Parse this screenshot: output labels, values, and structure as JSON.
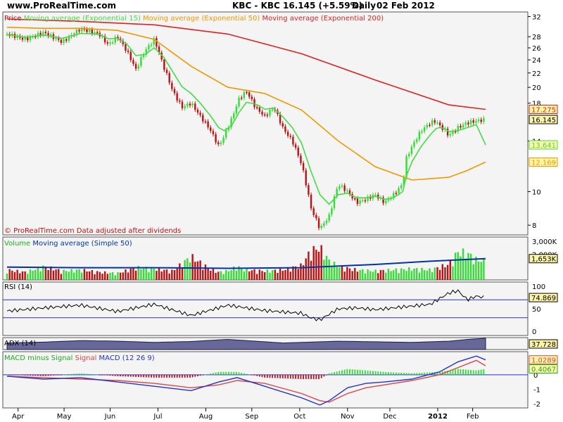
{
  "header": {
    "site": "www.ProRealTime.com",
    "title": "KBC - KBC",
    "price": "16.145 (+5.59%)",
    "period": "Daily",
    "date": "02 Feb 2012"
  },
  "colors": {
    "up": "#33dd33",
    "down": "#bb1111",
    "ema15": "#44dd44",
    "ema50": "#ee9900",
    "ema200": "#dd2222",
    "volume_ma": "#0033aa",
    "rsi": "#000000",
    "macd": "#2233cc",
    "signal": "#dd4444",
    "panel_bg": "#f4f4f4"
  },
  "chart_data": [
    {
      "type": "line",
      "panel": "price",
      "legend": [
        "Price",
        "Moving average (Exponential 15)",
        "Moving average (Exponential 50)",
        "Moving average (Exponential 200)"
      ],
      "footnote": "© ProRealTime.com  Data adjusted after dividends",
      "x_months": [
        "Apr",
        "May",
        "Jun",
        "Jul",
        "Aug",
        "Sep",
        "Oct",
        "Nov",
        "Dec",
        "2012",
        "Feb"
      ],
      "y_ticks": [
        32,
        28,
        26,
        24,
        22,
        20,
        18,
        14,
        10,
        8
      ],
      "y_scale": "log",
      "ylim": [
        7.5,
        33
      ],
      "series": [
        {
          "name": "Price",
          "role": "price",
          "x": [
            0,
            10,
            20,
            30,
            40,
            50,
            55,
            60,
            65,
            70,
            75,
            80,
            85,
            90,
            95,
            100,
            105,
            110,
            115,
            118,
            122,
            126,
            130,
            135,
            140,
            145,
            150,
            155,
            160,
            165,
            170,
            175,
            180,
            185,
            190,
            195,
            200,
            205,
            210,
            215,
            217,
            220,
            225,
            230,
            233,
            235,
            238,
            240,
            245,
            250,
            255,
            260
          ],
          "values": [
            28.5,
            27.5,
            28.8,
            27.0,
            29.5,
            28.5,
            26.5,
            28.0,
            25.5,
            22.5,
            25.5,
            27.5,
            23.0,
            19.5,
            17.5,
            18.0,
            16.5,
            15.2,
            13.5,
            14.5,
            16.2,
            18.5,
            19.5,
            17.5,
            16.5,
            17.5,
            15.2,
            14.0,
            12.0,
            9.0,
            7.8,
            8.5,
            10.5,
            10.0,
            9.3,
            9.5,
            9.8,
            9.3,
            9.8,
            10.5,
            12.5,
            13.5,
            15.0,
            15.8,
            16.0,
            15.5,
            15.0,
            14.5,
            15.3,
            15.8,
            16.0,
            16.145
          ]
        },
        {
          "name": "Moving average (Exponential 15)",
          "role": "ema15",
          "x": [
            0,
            10,
            20,
            30,
            40,
            50,
            55,
            60,
            65,
            70,
            75,
            80,
            85,
            90,
            95,
            100,
            105,
            110,
            115,
            118,
            122,
            126,
            130,
            135,
            140,
            145,
            150,
            155,
            160,
            165,
            170,
            175,
            180,
            185,
            190,
            195,
            200,
            205,
            210,
            215,
            217,
            220,
            225,
            230,
            233,
            235,
            238,
            240,
            245,
            250,
            255,
            260
          ],
          "values": [
            28.4,
            27.9,
            28.3,
            27.7,
            28.6,
            28.5,
            27.6,
            27.7,
            26.7,
            24.7,
            24.9,
            26.0,
            24.5,
            22.2,
            20.1,
            19.2,
            18.0,
            16.7,
            15.3,
            15.0,
            15.5,
            16.9,
            18.1,
            17.9,
            17.3,
            17.4,
            16.4,
            15.3,
            13.8,
            11.5,
            9.8,
            9.2,
            9.8,
            9.9,
            9.6,
            9.6,
            9.7,
            9.5,
            9.6,
            10.0,
            11.1,
            12.2,
            13.5,
            14.6,
            15.2,
            15.3,
            15.2,
            14.9,
            15.0,
            15.3,
            15.6,
            13.641
          ]
        },
        {
          "name": "Moving average (Exponential 50)",
          "role": "ema50",
          "x": [
            0,
            20,
            40,
            60,
            80,
            100,
            120,
            140,
            160,
            180,
            200,
            220,
            240,
            250,
            260
          ],
          "values": [
            29.8,
            29.6,
            29.6,
            29.2,
            27.5,
            23.0,
            20.0,
            19.2,
            17.2,
            14.0,
            11.8,
            10.8,
            11.0,
            11.5,
            12.169
          ]
        },
        {
          "name": "Moving average (Exponential 200)",
          "role": "ema200",
          "x": [
            0,
            40,
            80,
            120,
            160,
            200,
            240,
            260
          ],
          "values": [
            31.5,
            31.0,
            30.3,
            28.5,
            25.0,
            21.0,
            17.8,
            17.275
          ]
        }
      ],
      "value_labels": [
        "17.275",
        "16.145",
        "13.641",
        "12.169"
      ]
    },
    {
      "type": "bar",
      "panel": "volume",
      "legend": [
        "Volume",
        "Moving average (Simple 50)"
      ],
      "y_ticks": [
        "3,000K",
        "2,000K"
      ],
      "ylim": [
        0,
        3000
      ],
      "series": [
        {
          "name": "Volume",
          "x": [
            0,
            10,
            20,
            30,
            40,
            50,
            60,
            70,
            80,
            90,
            100,
            110,
            115,
            120,
            125,
            130,
            140,
            150,
            160,
            165,
            170,
            175,
            180,
            190,
            200,
            210,
            220,
            230,
            240,
            245,
            250,
            255,
            260
          ],
          "values": [
            900,
            700,
            1200,
            800,
            900,
            700,
            600,
            1100,
            1000,
            800,
            2100,
            1000,
            700,
            800,
            1200,
            900,
            800,
            900,
            1300,
            2600,
            2900,
            1700,
            1200,
            900,
            800,
            900,
            1000,
            900,
            1400,
            2500,
            2400,
            1800,
            1700
          ]
        },
        {
          "name": "Moving average (Simple 50)",
          "role": "ma",
          "x": [
            0,
            40,
            80,
            120,
            160,
            200,
            230,
            260
          ],
          "values": [
            1000,
            950,
            950,
            900,
            950,
            1200,
            1450,
            1653
          ]
        }
      ],
      "value_labels": [
        "1,653K"
      ]
    },
    {
      "type": "line",
      "panel": "rsi",
      "legend": [
        "RSI (14)"
      ],
      "y_ticks": [
        100,
        50,
        0
      ],
      "ylim": [
        0,
        100
      ],
      "levels": [
        70,
        30
      ],
      "series": [
        {
          "name": "RSI (14)",
          "x": [
            0,
            20,
            40,
            60,
            80,
            100,
            120,
            140,
            160,
            165,
            170,
            175,
            180,
            190,
            200,
            210,
            220,
            230,
            240,
            245,
            250,
            255,
            260
          ],
          "values": [
            45,
            52,
            58,
            44,
            60,
            35,
            58,
            46,
            40,
            30,
            25,
            38,
            50,
            52,
            48,
            52,
            56,
            60,
            85,
            90,
            70,
            78,
            74.869
          ]
        }
      ],
      "value_labels": [
        "74.869"
      ]
    },
    {
      "type": "area",
      "panel": "adx",
      "legend": [
        "ADX (14)"
      ],
      "series": [
        {
          "name": "ADX (14)",
          "x": [
            0,
            20,
            40,
            60,
            80,
            100,
            120,
            140,
            150,
            160,
            180,
            200,
            220,
            240,
            250,
            260
          ],
          "values": [
            22,
            25,
            30,
            28,
            24,
            27,
            34,
            26,
            22,
            24,
            28,
            26,
            24,
            28,
            34,
            37.728
          ]
        }
      ],
      "value_labels": [
        "37.728"
      ]
    },
    {
      "type": "line",
      "panel": "macd",
      "legend": [
        "MACD minus Signal",
        "Signal",
        "MACD (12 26 9)"
      ],
      "y_ticks": [
        1,
        0,
        -1,
        -2
      ],
      "ylim": [
        -2.3,
        1.6
      ],
      "series": [
        {
          "name": "MACD (12 26 9)",
          "role": "macd",
          "x": [
            0,
            20,
            40,
            60,
            80,
            100,
            115,
            125,
            140,
            160,
            170,
            175,
            185,
            195,
            205,
            220,
            235,
            245,
            255,
            260
          ],
          "values": [
            -0.1,
            -0.3,
            -0.2,
            -0.5,
            -0.8,
            -1.1,
            -0.5,
            -0.2,
            -0.8,
            -1.6,
            -2.1,
            -1.8,
            -0.9,
            -0.6,
            -0.5,
            -0.3,
            0.2,
            0.9,
            1.3,
            1.0289
          ]
        },
        {
          "name": "Signal",
          "role": "signal",
          "x": [
            0,
            20,
            40,
            60,
            80,
            100,
            115,
            125,
            140,
            160,
            170,
            175,
            185,
            195,
            205,
            220,
            235,
            245,
            255,
            260
          ],
          "values": [
            -0.1,
            -0.2,
            -0.3,
            -0.4,
            -0.6,
            -0.9,
            -0.7,
            -0.4,
            -0.6,
            -1.3,
            -1.8,
            -1.9,
            -1.3,
            -0.9,
            -0.7,
            -0.4,
            0.0,
            0.5,
            1.0,
            0.6222
          ]
        },
        {
          "name": "MACD minus Signal",
          "role": "hist",
          "x": [
            0,
            20,
            40,
            60,
            80,
            100,
            115,
            125,
            140,
            160,
            170,
            175,
            185,
            195,
            205,
            220,
            235,
            245,
            255,
            260
          ],
          "values": [
            0.0,
            -0.1,
            0.1,
            -0.1,
            -0.2,
            -0.2,
            0.2,
            0.2,
            -0.2,
            -0.3,
            -0.3,
            0.1,
            0.4,
            0.3,
            0.2,
            0.1,
            0.2,
            0.4,
            0.3,
            0.4067
          ]
        }
      ],
      "value_labels": [
        "1.0289",
        "0.4067"
      ]
    }
  ]
}
